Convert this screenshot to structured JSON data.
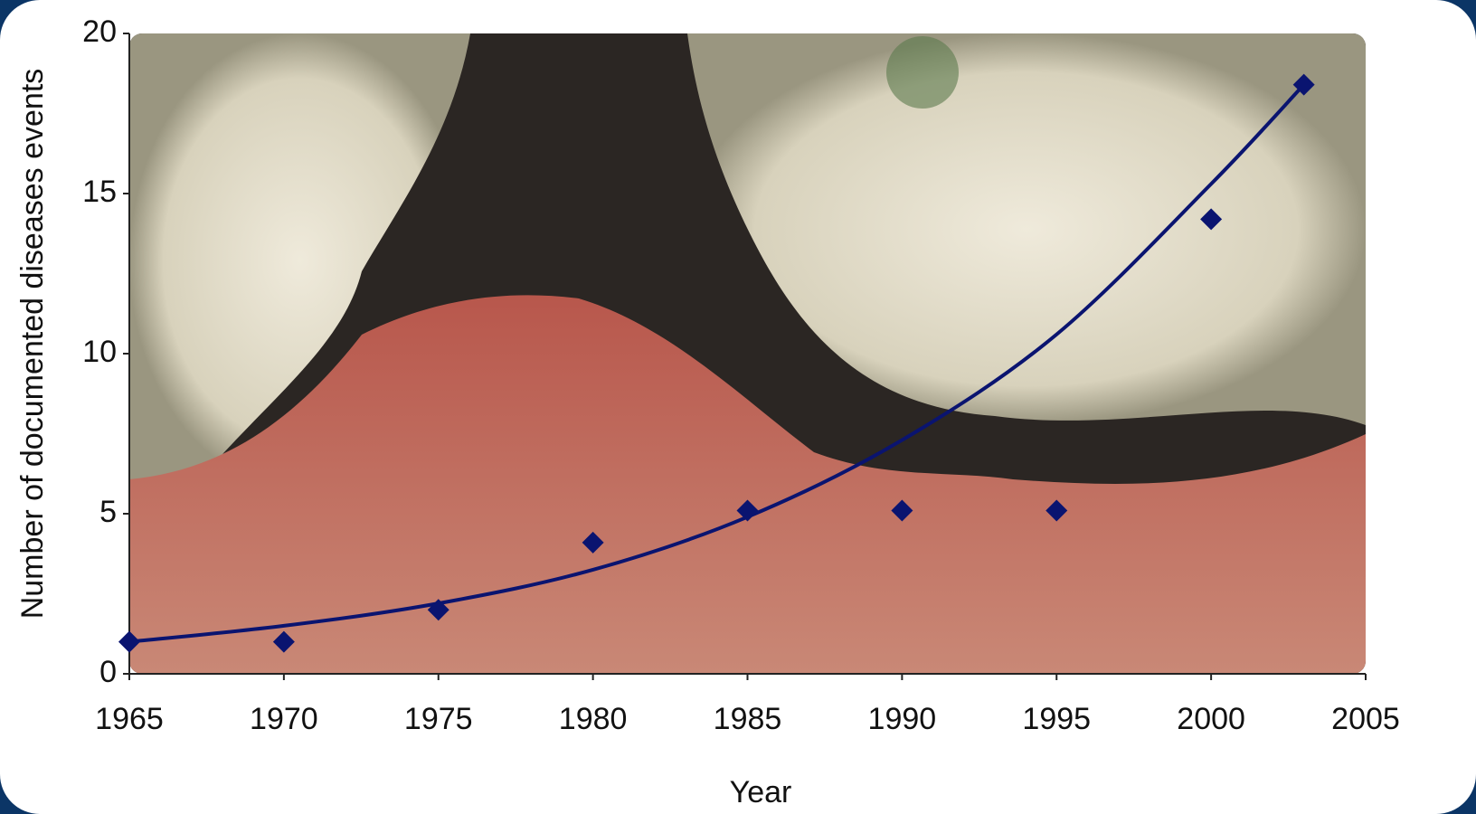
{
  "chart_data": {
    "type": "scatter",
    "x_label": "Year",
    "y_label": "Number of documented diseases events",
    "x": [
      1965,
      1970,
      1975,
      1980,
      1985,
      1990,
      1995,
      2000,
      2003
    ],
    "values": [
      1.0,
      1.0,
      2.0,
      4.1,
      5.1,
      5.1,
      5.1,
      14.2,
      18.4
    ],
    "color": "#0a1470",
    "trendline": {
      "color": "#0a1470",
      "x": [
        1965,
        1970,
        1975,
        1980,
        1985,
        1990,
        1995,
        2000,
        2003
      ],
      "values": [
        1.0,
        1.5,
        2.2,
        3.25,
        4.9,
        7.3,
        10.6,
        15.3,
        18.4
      ]
    },
    "xlim": [
      1965,
      2005
    ],
    "xticks": [
      1965,
      1970,
      1975,
      1980,
      1985,
      1990,
      1995,
      2000,
      2005
    ],
    "ylim": [
      0,
      20
    ],
    "yticks": [
      0,
      5,
      10,
      15,
      20
    ],
    "grid": false
  }
}
